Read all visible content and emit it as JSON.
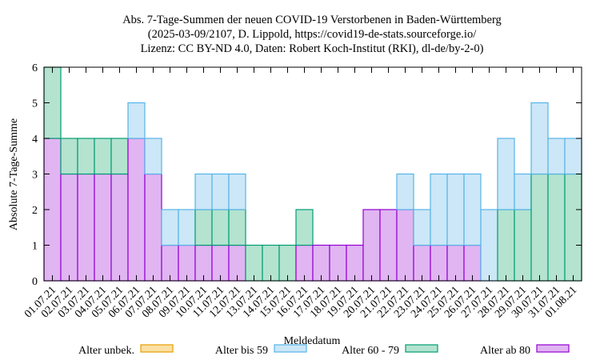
{
  "chart_data": {
    "type": "bar",
    "stacked": true,
    "title": [
      "Abs. 7-Tage-Summen der neuen COVID-19 Verstorbenen in Baden-Württemberg",
      "(2025-03-09/2107, D. Lippold, https://covid19-de-stats.sourceforge.io/",
      "Lizenz: CC BY-ND 4.0, Daten: Robert Koch-Institut (RKI), dl-de/by-2-0)"
    ],
    "xlabel": "Meldedatum",
    "ylabel": "Absolute 7-Tage-Summe",
    "ylim": [
      0,
      6
    ],
    "yticks": [
      0,
      1,
      2,
      3,
      4,
      5,
      6
    ],
    "grid": false,
    "legend_position": "bottom",
    "categories": [
      "01.07.21",
      "02.07.21",
      "03.07.21",
      "04.07.21",
      "05.07.21",
      "06.07.21",
      "07.07.21",
      "08.07.21",
      "09.07.21",
      "10.07.21",
      "11.07.21",
      "12.07.21",
      "13.07.21",
      "14.07.21",
      "15.07.21",
      "16.07.21",
      "17.07.21",
      "18.07.21",
      "19.07.21",
      "20.07.21",
      "21.07.21",
      "22.07.21",
      "23.07.21",
      "24.07.21",
      "25.07.21",
      "26.07.21",
      "27.07.21",
      "28.07.21",
      "29.07.21",
      "30.07.21",
      "31.07.21",
      "01.08.21"
    ],
    "series": [
      {
        "name": "Alter ab 80",
        "fill": "#e0b5f2",
        "stroke": "#9400d3",
        "values": [
          4,
          3,
          3,
          3,
          3,
          4,
          3,
          1,
          1,
          1,
          1,
          1,
          0,
          0,
          0,
          1,
          1,
          1,
          1,
          2,
          2,
          2,
          1,
          1,
          1,
          1,
          0,
          0,
          0,
          0,
          0,
          0
        ]
      },
      {
        "name": "Alter 60 - 79",
        "fill": "#b4e3d0",
        "stroke": "#009e73",
        "values": [
          2,
          1,
          1,
          1,
          1,
          0,
          0,
          0,
          0,
          1,
          1,
          1,
          1,
          1,
          1,
          1,
          0,
          0,
          0,
          0,
          0,
          0,
          0,
          0,
          0,
          0,
          0,
          2,
          2,
          3,
          3,
          3
        ]
      },
      {
        "name": "Alter bis 59",
        "fill": "#cce7f7",
        "stroke": "#56b4e9",
        "values": [
          0,
          0,
          0,
          0,
          0,
          1,
          1,
          1,
          1,
          1,
          1,
          1,
          0,
          0,
          0,
          0,
          0,
          0,
          0,
          0,
          0,
          1,
          1,
          2,
          2,
          2,
          2,
          2,
          1,
          2,
          1,
          1
        ]
      },
      {
        "name": "Alter unbek.",
        "fill": "#fbe0a4",
        "stroke": "#e69f00",
        "values": [
          0,
          0,
          0,
          0,
          0,
          0,
          0,
          0,
          0,
          0,
          0,
          0,
          0,
          0,
          0,
          0,
          0,
          0,
          0,
          0,
          0,
          0,
          0,
          0,
          0,
          0,
          0,
          0,
          0,
          0,
          0,
          0
        ]
      }
    ],
    "legend_order": [
      "Alter unbek.",
      "Alter bis 59",
      "Alter 60 - 79",
      "Alter ab 80"
    ]
  }
}
